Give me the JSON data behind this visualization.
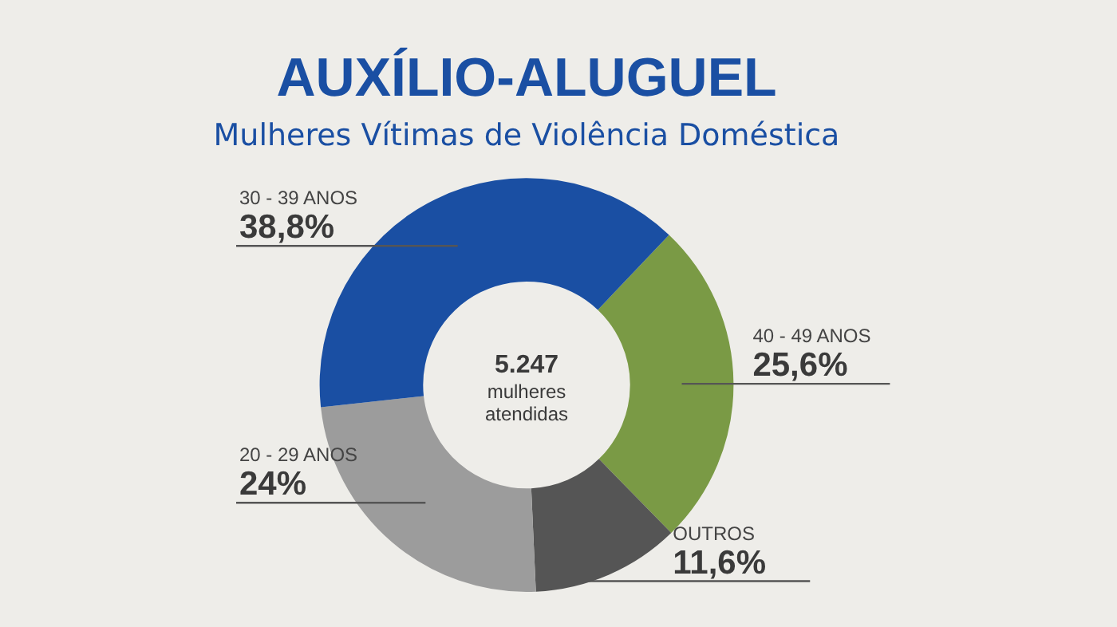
{
  "chart_data": {
    "type": "donut",
    "title": "AUXÍLIO-ALUGUEL",
    "subtitle": "Mulheres Vítimas de Violência Doméstica",
    "categories": [
      "40 - 49 ANOS",
      "OUTROS",
      "20 - 29 ANOS",
      "30 - 39 ANOS"
    ],
    "values": [
      25.6,
      11.6,
      24,
      38.8
    ],
    "colors": [
      "#7a9a45",
      "#555555",
      "#9c9c9c",
      "#1a4fa3"
    ],
    "value_labels": [
      "25,6%",
      "11,6%",
      "24%",
      "38,8%"
    ],
    "annotations": [
      "5.247",
      "mulheres atendidas"
    ],
    "legend": false
  }
}
